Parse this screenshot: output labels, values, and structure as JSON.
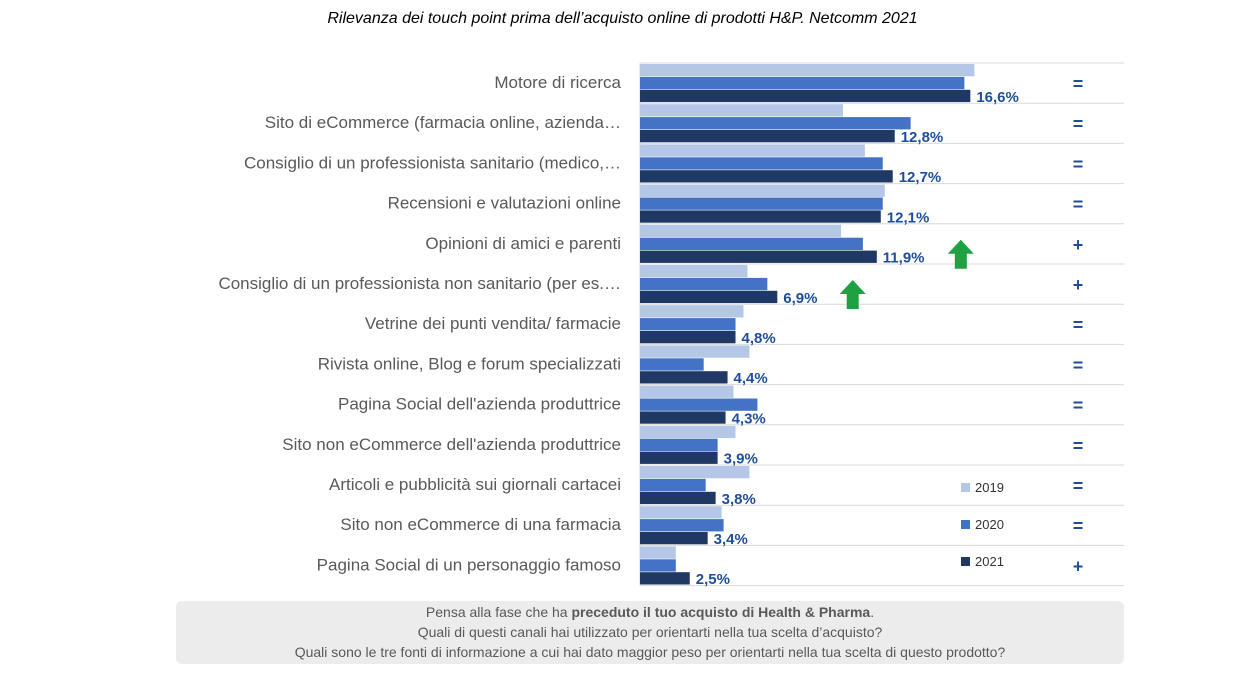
{
  "chart_data": {
    "type": "bar",
    "orientation": "horizontal",
    "title": "Rilevanza dei touch point prima dell’acquisto online di prodotti H&P. Netcomm 2021",
    "categories": [
      "Motore di ricerca",
      "Sito di eCommerce (farmacia online, azienda…",
      "Consiglio di un professionista sanitario (medico,…",
      "Recensioni e valutazioni online",
      "Opinioni di amici e parenti",
      "Consiglio di un professionista non sanitario (per es.…",
      "Vetrine dei punti vendita/ farmacie",
      "Rivista online, Blog e forum specializzati",
      "Pagina Social dell'azienda produttrice",
      "Sito non eCommerce dell'azienda produttrice",
      "Articoli e pubblicità sui giornali cartacei",
      "Sito non eCommerce di una farmacia",
      "Pagina Social di un personaggio famoso"
    ],
    "series": [
      {
        "name": "2019",
        "color": "#b4c7e7",
        "values": [
          16.8,
          10.2,
          11.3,
          12.3,
          10.1,
          5.4,
          5.2,
          5.5,
          4.7,
          4.8,
          5.5,
          4.1,
          1.8
        ]
      },
      {
        "name": "2020",
        "color": "#4472c4",
        "values": [
          16.3,
          13.6,
          12.2,
          12.2,
          11.2,
          6.4,
          4.8,
          3.2,
          5.9,
          3.9,
          3.3,
          4.2,
          1.8
        ]
      },
      {
        "name": "2021",
        "color": "#203864",
        "values": [
          16.6,
          12.8,
          12.7,
          12.1,
          11.9,
          6.9,
          4.8,
          4.4,
          4.3,
          3.9,
          3.8,
          3.4,
          2.5
        ]
      }
    ],
    "value_labels": [
      "16,6%",
      "12,8%",
      "12,7%",
      "12,1%",
      "11,9%",
      "6,9%",
      "4,8%",
      "4,4%",
      "4,3%",
      "3,9%",
      "3,8%",
      "3,4%",
      "2,5%"
    ],
    "trend": [
      "=",
      "=",
      "=",
      "=",
      "+",
      "+",
      "=",
      "=",
      "=",
      "=",
      "=",
      "=",
      "+"
    ],
    "up_arrows": [
      4,
      5
    ],
    "xlim": [
      0,
      18
    ],
    "legend": {
      "position": "bottom-right",
      "entries": [
        "2019",
        "2020",
        "2021"
      ]
    },
    "grid": false
  },
  "footnote": {
    "line1_prefix": "Pensa alla fase che ha ",
    "line1_bold": "preceduto il tuo acquisto di Health & Pharma",
    "line1_suffix": ".",
    "line2": "Quali di questi canali hai utilizzato per orientarti nella tua scelta d’acquisto?",
    "line3": "Quali sono le tre fonti di informazione a cui hai dato maggior peso per orientarti nella tua scelta di questo prodotto?"
  },
  "colors": {
    "arrow": "#1fa142",
    "value_text": "#1f4e99"
  }
}
